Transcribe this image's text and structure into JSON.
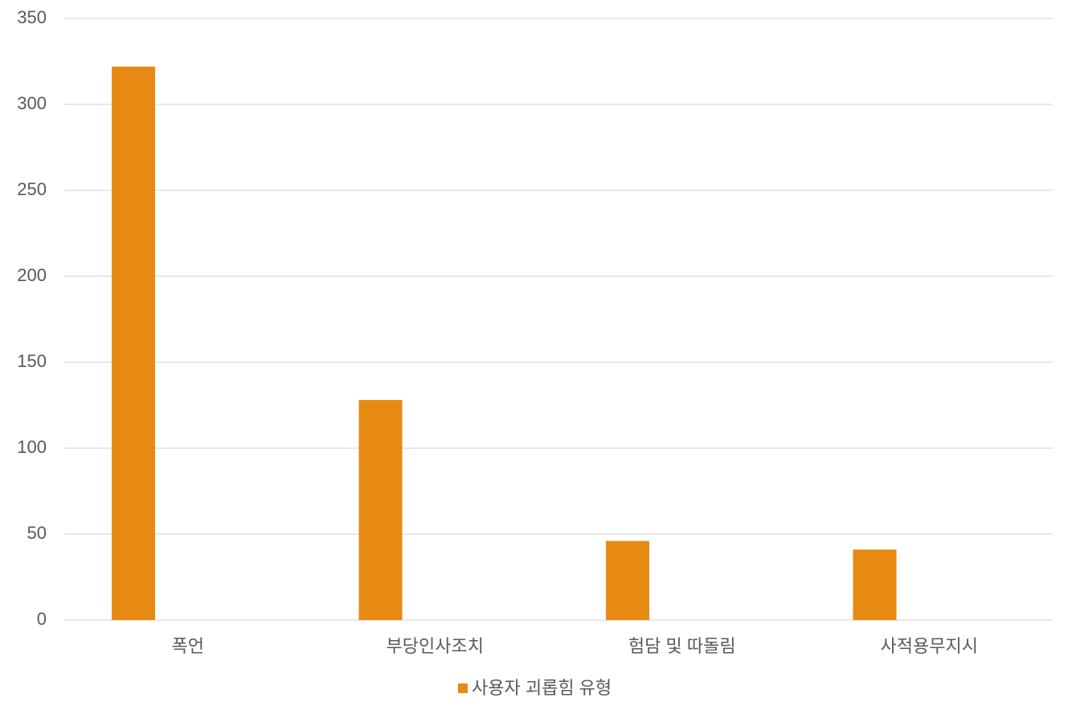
{
  "chart_data": {
    "type": "bar",
    "categories": [
      "폭언",
      "부당인사조치",
      "험담 및 따돌림",
      "사적용무지시"
    ],
    "series": [
      {
        "name": "사용자 괴롭힘 유형",
        "color": "#e68a14",
        "values": [
          322,
          128,
          46,
          41
        ]
      }
    ],
    "ylim": [
      0,
      350
    ],
    "yticks": [
      0,
      50,
      100,
      150,
      200,
      250,
      300,
      350
    ],
    "grid": true,
    "legend": "bottom"
  }
}
